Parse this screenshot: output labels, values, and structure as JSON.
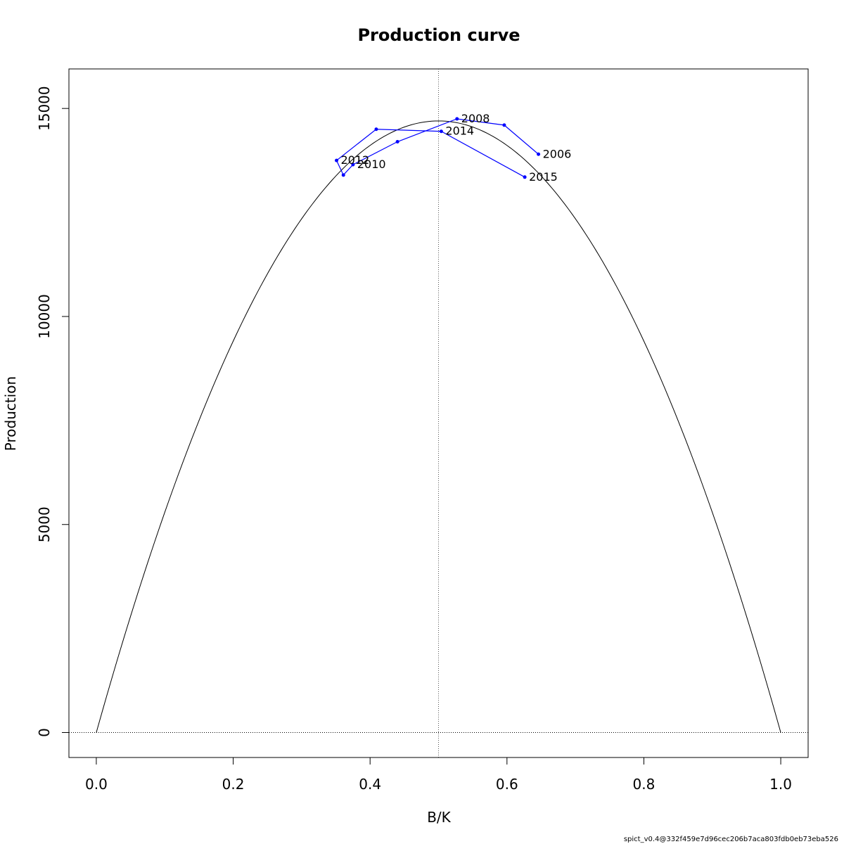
{
  "chart_data": {
    "type": "line",
    "title": "Production curve",
    "xlabel": "B/K",
    "ylabel": "Production",
    "xlim": [
      -0.04,
      1.04
    ],
    "ylim": [
      -600,
      15950
    ],
    "x_ticks": [
      0.0,
      0.2,
      0.4,
      0.6,
      0.8,
      1.0
    ],
    "x_tick_labels": [
      "0.0",
      "0.2",
      "0.4",
      "0.6",
      "0.8",
      "1.0"
    ],
    "y_ticks": [
      0,
      5000,
      10000,
      15000
    ],
    "y_tick_labels": [
      "0",
      "5000",
      "10000",
      "15000"
    ],
    "grid": false,
    "curve": {
      "shape": "parabola",
      "bmsy_over_k": 0.5,
      "msy": 14700,
      "color": "#000000"
    },
    "reference_lines": {
      "vertical_x": 0.5,
      "horizontal_y": 0
    },
    "series": [
      {
        "color": "#0000ff",
        "x": [
          0.646,
          0.596,
          0.527,
          0.44,
          0.375,
          0.361,
          0.351,
          0.409,
          0.504,
          0.626
        ],
        "y": [
          13900,
          14600,
          14750,
          14200,
          13650,
          13400,
          13750,
          14500,
          14450,
          13350
        ],
        "point_labels": [
          "2006",
          "",
          "2008",
          "",
          "2010",
          "",
          "2012",
          "",
          "2014",
          "2015"
        ]
      }
    ]
  },
  "footer": {
    "version": "spict_v0.4@332f459e7d96cec206b7aca803fdb0eb73eba526"
  }
}
